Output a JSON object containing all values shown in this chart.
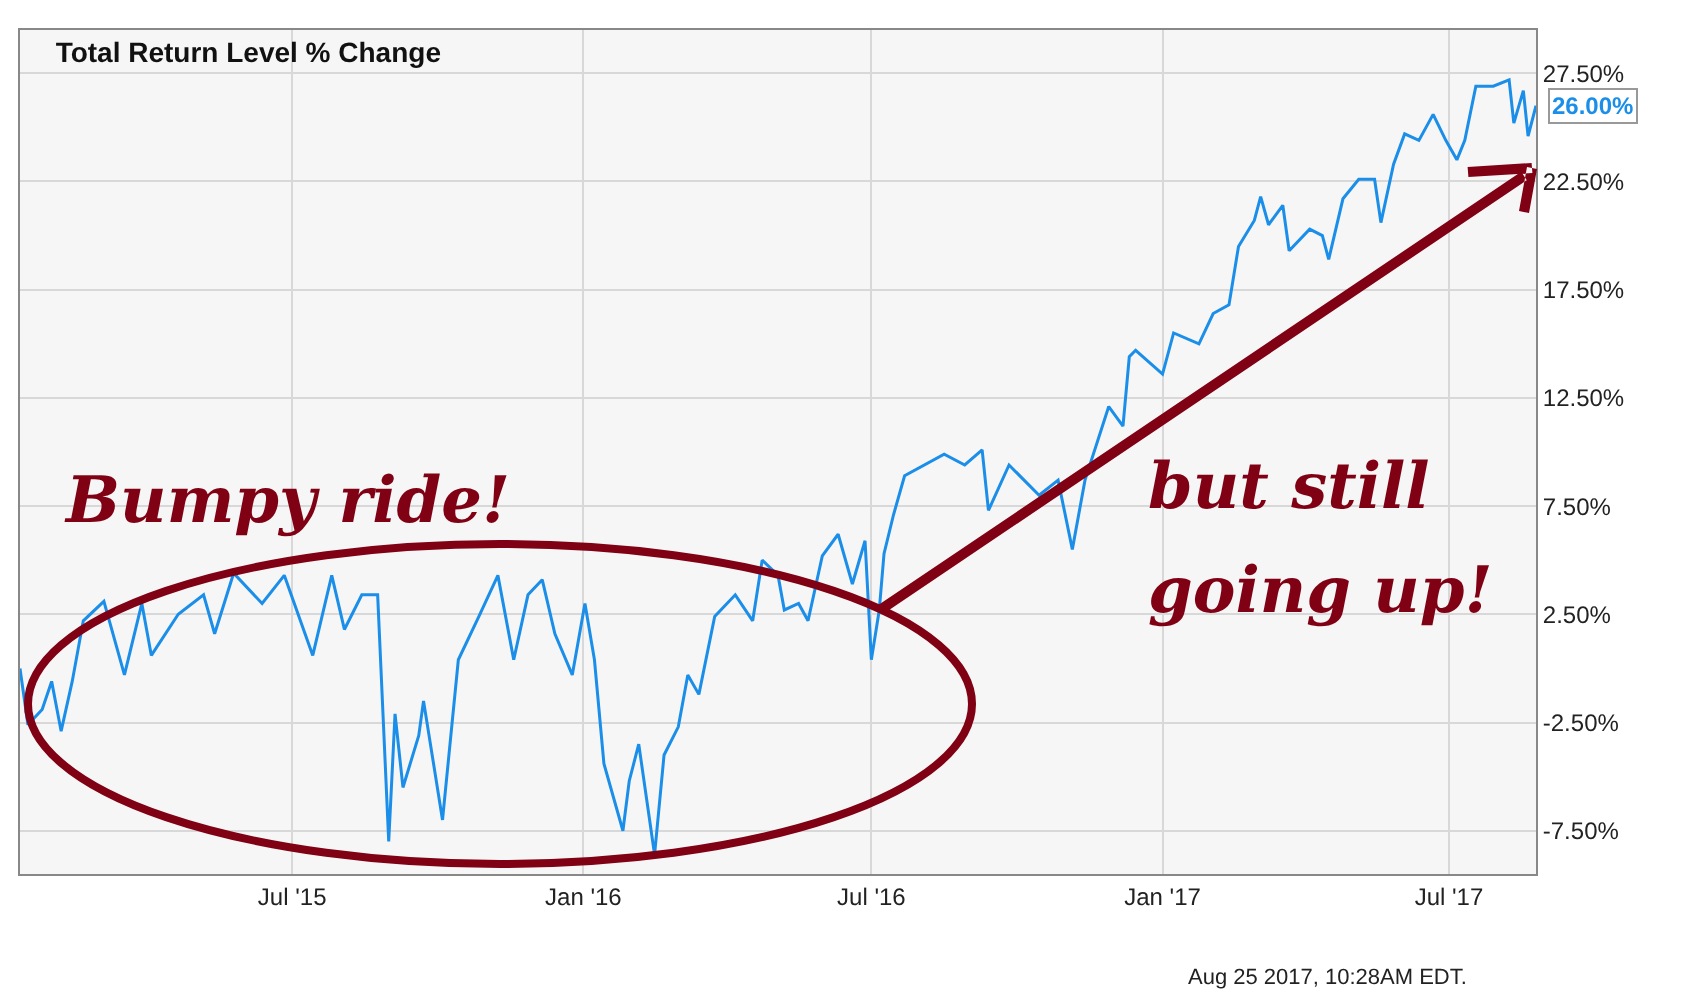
{
  "chart_data": {
    "type": "line",
    "title": "Total Return Level % Change",
    "x": [
      "2015-01-10",
      "2015-01-15",
      "2015-01-24",
      "2015-01-30",
      "2015-02-05",
      "2015-02-12",
      "2015-02-19",
      "2015-03-04",
      "2015-03-17",
      "2015-03-28",
      "2015-04-03",
      "2015-04-20",
      "2015-05-06",
      "2015-05-13",
      "2015-05-25",
      "2015-06-12",
      "2015-06-26",
      "2015-07-14",
      "2015-07-26",
      "2015-08-03",
      "2015-08-14",
      "2015-08-24",
      "2015-08-31",
      "2015-09-04",
      "2015-09-09",
      "2015-09-19",
      "2015-09-22",
      "2015-10-04",
      "2015-10-14",
      "2015-10-27",
      "2015-11-08",
      "2015-11-18",
      "2015-11-27",
      "2015-12-06",
      "2015-12-14",
      "2015-12-25",
      "2016-01-02",
      "2016-01-08",
      "2016-01-14",
      "2016-01-26",
      "2016-01-30",
      "2016-02-05",
      "2016-02-15",
      "2016-02-21",
      "2016-03-01",
      "2016-03-07",
      "2016-03-14",
      "2016-03-24",
      "2016-04-06",
      "2016-04-17",
      "2016-04-23",
      "2016-05-03",
      "2016-05-07",
      "2016-05-16",
      "2016-05-22",
      "2016-05-31",
      "2016-06-10",
      "2016-06-19",
      "2016-06-27",
      "2016-07-01",
      "2016-07-06",
      "2016-07-09",
      "2016-07-15",
      "2016-07-22",
      "2016-08-16",
      "2016-08-29",
      "2016-09-09",
      "2016-09-13",
      "2016-09-26",
      "2016-10-15",
      "2016-10-27",
      "2016-11-05",
      "2016-11-13",
      "2016-11-28",
      "2016-12-07",
      "2016-12-11",
      "2016-12-15",
      "2017-01-01",
      "2017-01-08",
      "2017-01-24",
      "2017-02-02",
      "2017-02-12",
      "2017-02-18",
      "2017-02-28",
      "2017-03-04",
      "2017-03-09",
      "2017-03-18",
      "2017-03-22",
      "2017-04-04",
      "2017-04-12",
      "2017-04-16",
      "2017-04-25",
      "2017-05-05",
      "2017-05-15",
      "2017-05-19",
      "2017-05-27",
      "2017-06-03",
      "2017-06-12",
      "2017-06-21",
      "2017-06-29",
      "2017-07-06",
      "2017-07-11",
      "2017-07-18",
      "2017-07-29",
      "2017-08-08",
      "2017-08-11",
      "2017-08-17",
      "2017-08-20",
      "2017-08-25"
    ],
    "series": [
      {
        "color": "#1a8ee8",
        "values": [
          0,
          -2.6,
          -1.9,
          -0.6,
          -2.9,
          -0.6,
          2.2,
          3.1,
          -0.3,
          3.0,
          0.6,
          2.5,
          3.4,
          1.6,
          4.4,
          3.0,
          4.3,
          0.6,
          4.3,
          1.8,
          3.4,
          3.4,
          -8.0,
          -2.1,
          -5.5,
          -3.1,
          -1.5,
          -7.0,
          0.4,
          2.4,
          4.3,
          0.4,
          3.4,
          4.1,
          1.6,
          -0.3,
          3.0,
          0.4,
          -4.4,
          -7.5,
          -5.2,
          -3.5,
          -8.6,
          -4.0,
          -2.7,
          -0.3,
          -1.2,
          2.4,
          3.4,
          2.2,
          5.0,
          4.3,
          2.7,
          3.0,
          2.2,
          5.2,
          6.2,
          3.9,
          5.9,
          0.4,
          2.7,
          5.3,
          7.1,
          8.9,
          9.9,
          9.4,
          10.1,
          7.3,
          9.4,
          8.0,
          8.7,
          5.5,
          8.7,
          12.1,
          11.2,
          14.4,
          14.7,
          13.6,
          15.5,
          15.0,
          16.4,
          16.8,
          19.5,
          20.7,
          21.8,
          20.5,
          21.4,
          19.3,
          20.3,
          20.0,
          18.9,
          21.7,
          22.6,
          22.6,
          20.6,
          23.3,
          24.7,
          24.4,
          25.6,
          24.4,
          23.5,
          24.4,
          26.9,
          26.9,
          27.2,
          25.2,
          26.7,
          24.6,
          26.0
        ]
      }
    ],
    "xlim": [
      "2015-01-10",
      "2017-08-25"
    ],
    "xticks": [
      {
        "value": "2015-07-01",
        "label": "Jul '15"
      },
      {
        "value": "2016-01-01",
        "label": "Jan '16"
      },
      {
        "value": "2016-07-01",
        "label": "Jul '16"
      },
      {
        "value": "2017-01-01",
        "label": "Jan '17"
      },
      {
        "value": "2017-07-01",
        "label": "Jul '17"
      }
    ],
    "ylim": [
      -9.5,
      29.5
    ],
    "yticks": [
      {
        "value": -7.5,
        "label": "-7.50%"
      },
      {
        "value": -2.5,
        "label": "-2.50%"
      },
      {
        "value": 2.5,
        "label": "2.50%"
      },
      {
        "value": 7.5,
        "label": "7.50%"
      },
      {
        "value": 12.5,
        "label": "12.50%"
      },
      {
        "value": 17.5,
        "label": "17.50%"
      },
      {
        "value": 22.5,
        "label": "22.50%"
      },
      {
        "value": 27.5,
        "label": "27.50%"
      }
    ],
    "grid": true,
    "marker": "none",
    "line_style": "solid",
    "annotations": [
      {
        "text": "26.00%",
        "x": "2017-08-25",
        "y": 26
      },
      "Bumpy ride!",
      "but still",
      "going up!",
      "Aug 25 2017, 10:28AM EDT."
    ]
  }
}
